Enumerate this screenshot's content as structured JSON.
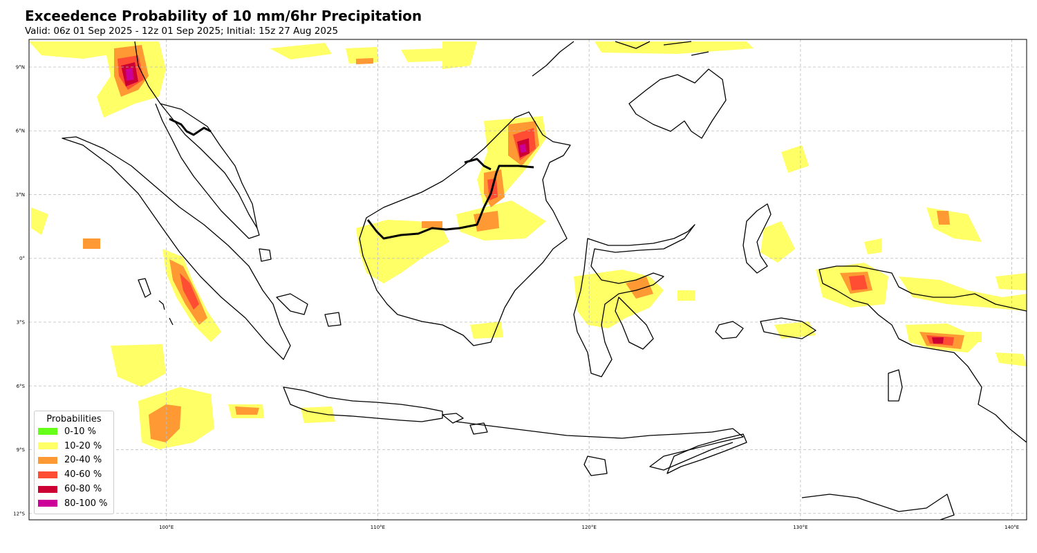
{
  "title": "Exceedence Probability of 10 mm/6hr Precipitation",
  "subtitle": "Valid: 06z 01 Sep 2025 - 12z 01 Sep 2025; Initial: 15z 27 Aug 2025",
  "map": {
    "region": "Indonesian archipelago",
    "lon_range": [
      93.5,
      140.7
    ],
    "lat_range": [
      -12.3,
      10.3
    ],
    "grid_lines": true,
    "lon_ticks": [
      {
        "value": 100,
        "label": "100°E"
      },
      {
        "value": 110,
        "label": "110°E"
      },
      {
        "value": 120,
        "label": "120°E"
      },
      {
        "value": 130,
        "label": "130°E"
      },
      {
        "value": 140,
        "label": "140°E"
      }
    ],
    "lat_ticks": [
      {
        "value": 9,
        "label": "9°N"
      },
      {
        "value": 6,
        "label": "6°N"
      },
      {
        "value": 3,
        "label": "3°N"
      },
      {
        "value": 0,
        "label": "0°"
      },
      {
        "value": -3,
        "label": "3°S"
      },
      {
        "value": -6,
        "label": "6°S"
      },
      {
        "value": -9,
        "label": "9°S"
      },
      {
        "value": -12,
        "label": "12°S"
      }
    ]
  },
  "legend": {
    "title": "Probabilities",
    "items": [
      {
        "label": "0-10 %",
        "color": "#66ff1a"
      },
      {
        "label": "10-20 %",
        "color": "#ffff66"
      },
      {
        "label": "20-40 %",
        "color": "#ff9933"
      },
      {
        "label": "40-60 %",
        "color": "#ff4d33"
      },
      {
        "label": "60-80 %",
        "color": "#cc0033"
      },
      {
        "label": "80-100 %",
        "color": "#cc0099"
      }
    ]
  }
}
